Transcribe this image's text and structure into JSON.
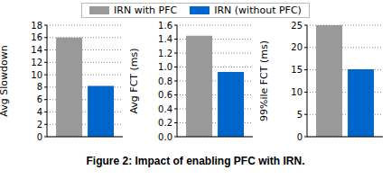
{
  "caption": "Figure 2: Impact of enabling PFC with IRN.",
  "chart_data": [
    {
      "type": "bar",
      "y_label": "Avg Slowdown",
      "categories": [
        null
      ],
      "series": [
        {
          "name": "IRN with PFC",
          "color": "#999999",
          "values": [
            16
          ]
        },
        {
          "name": "IRN (without PFC)",
          "color": "#0066cc",
          "values": [
            8.2
          ]
        }
      ],
      "ylim": [
        0,
        18
      ],
      "yticks": [
        0,
        2,
        4,
        6,
        8,
        10,
        12,
        14,
        16,
        18
      ],
      "grid": true
    },
    {
      "type": "bar",
      "y_label": "Avg FCT (ms)",
      "categories": [
        null
      ],
      "series": [
        {
          "name": "IRN with PFC",
          "color": "#999999",
          "values": [
            1.45
          ]
        },
        {
          "name": "IRN (without PFC)",
          "color": "#0066cc",
          "values": [
            0.93
          ]
        }
      ],
      "ylim": [
        0,
        1.6
      ],
      "yticks": [
        {
          "value": 0,
          "label": "0.0"
        },
        0.2,
        0.4,
        0.6,
        0.8,
        {
          "value": 1,
          "label": "1.0"
        },
        1.2,
        1.4,
        1.6
      ],
      "grid": true
    },
    {
      "type": "bar",
      "y_label": "99%ile FCT (ms)",
      "categories": [
        null
      ],
      "series": [
        {
          "name": "IRN with PFC",
          "color": "#999999",
          "values": [
            25
          ]
        },
        {
          "name": "IRN (without PFC)",
          "color": "#0066cc",
          "values": [
            15.1
          ]
        }
      ],
      "ylim": [
        0,
        25
      ],
      "yticks": [
        0,
        5,
        10,
        15,
        20,
        25
      ],
      "grid": true
    }
  ]
}
